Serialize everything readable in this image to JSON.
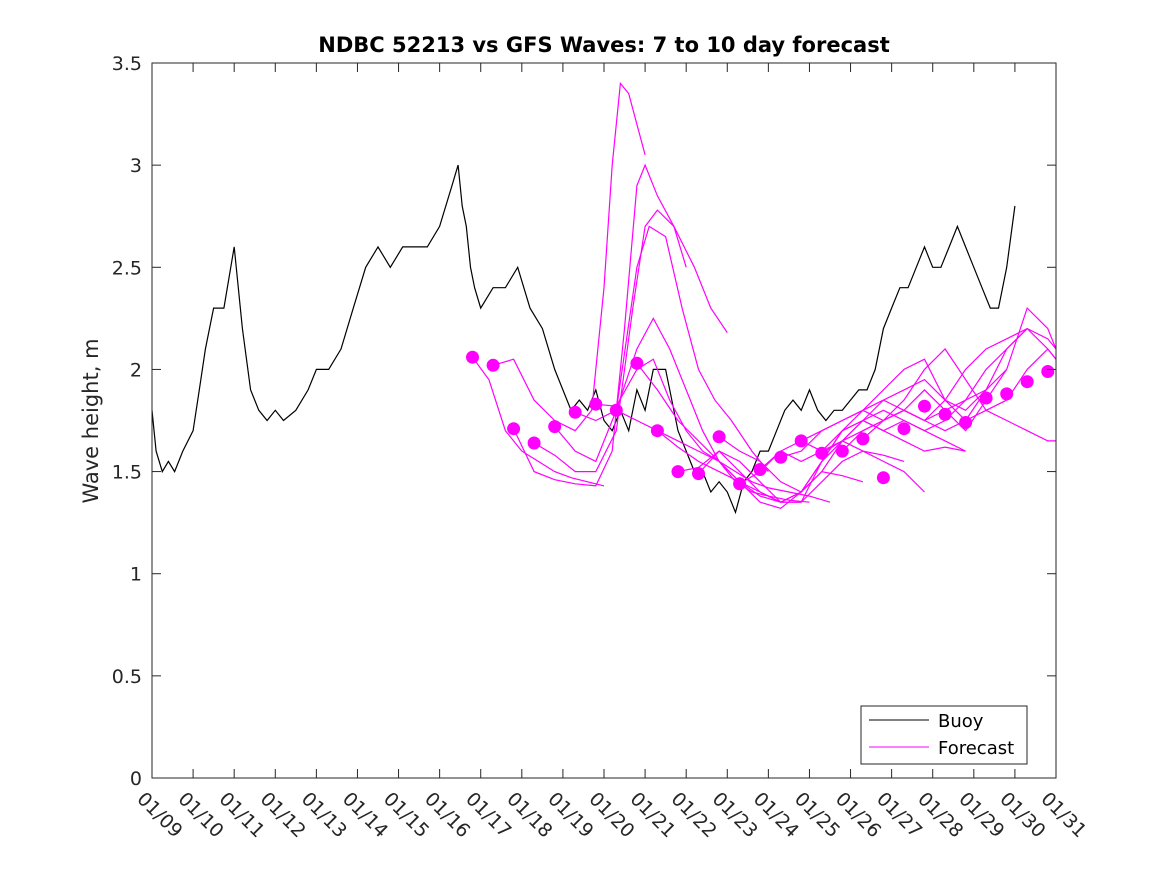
{
  "chart_data": {
    "type": "line",
    "title": "NDBC 52213 vs GFS Waves: 7 to 10 day forecast",
    "xlabel": "",
    "ylabel": "Wave height, m",
    "ylim": [
      0,
      3.5
    ],
    "yticks": [
      0,
      0.5,
      1,
      1.5,
      2,
      2.5,
      3,
      3.5
    ],
    "ytick_labels": [
      "0",
      "0.5",
      "1",
      "1.5",
      "2",
      "2.5",
      "3",
      "3.5"
    ],
    "xlim": [
      0,
      22
    ],
    "xtick_labels": [
      "01/09",
      "01/10",
      "01/11",
      "01/12",
      "01/13",
      "01/14",
      "01/15",
      "01/16",
      "01/17",
      "01/18",
      "01/19",
      "01/20",
      "01/21",
      "01/22",
      "01/23",
      "01/24",
      "01/25",
      "01/26",
      "01/27",
      "01/28",
      "01/29",
      "01/30",
      "01/31"
    ],
    "grid": false,
    "legend": {
      "position": "bottom-right",
      "entries": [
        "Buoy",
        "Forecast"
      ]
    },
    "colors": {
      "buoy": "#000000",
      "forecast": "#ff00ff"
    },
    "series": [
      {
        "name": "Buoy",
        "x": [
          0,
          0.1,
          0.25,
          0.4,
          0.55,
          0.75,
          1.0,
          1.15,
          1.3,
          1.5,
          1.75,
          2.0,
          2.2,
          2.4,
          2.6,
          2.8,
          3.0,
          3.2,
          3.5,
          3.8,
          4.0,
          4.3,
          4.6,
          4.9,
          5.2,
          5.5,
          5.8,
          6.1,
          6.4,
          6.7,
          7.0,
          7.3,
          7.45,
          7.55,
          7.65,
          7.75,
          7.85,
          8.0,
          8.3,
          8.6,
          8.9,
          9.2,
          9.5,
          9.8,
          10.0,
          10.2,
          10.4,
          10.6,
          10.8,
          11.0,
          11.2,
          11.4,
          11.6,
          11.8,
          12.0,
          12.2,
          12.5,
          12.8,
          13.0,
          13.2,
          13.4,
          13.6,
          13.8,
          14.0,
          14.2,
          14.4,
          14.6,
          14.8,
          15.0,
          15.2,
          15.4,
          15.6,
          15.8,
          16.0,
          16.2,
          16.4,
          16.6,
          16.8,
          17.0,
          17.2,
          17.4,
          17.6,
          17.8,
          18.0,
          18.2,
          18.4,
          18.6,
          18.8,
          19.0,
          19.2,
          19.4,
          19.6,
          19.8,
          20.0,
          20.2,
          20.4,
          20.6,
          20.8,
          21.0
        ],
        "values": [
          1.8,
          1.6,
          1.5,
          1.55,
          1.5,
          1.6,
          1.7,
          1.9,
          2.1,
          2.3,
          2.3,
          2.6,
          2.2,
          1.9,
          1.8,
          1.75,
          1.8,
          1.75,
          1.8,
          1.9,
          2.0,
          2.0,
          2.1,
          2.3,
          2.5,
          2.6,
          2.5,
          2.6,
          2.6,
          2.6,
          2.7,
          2.9,
          3.0,
          2.8,
          2.7,
          2.5,
          2.4,
          2.3,
          2.4,
          2.4,
          2.5,
          2.3,
          2.2,
          2.0,
          1.9,
          1.8,
          1.85,
          1.8,
          1.9,
          1.75,
          1.7,
          1.8,
          1.7,
          1.9,
          1.8,
          2.0,
          2.0,
          1.7,
          1.6,
          1.5,
          1.5,
          1.4,
          1.45,
          1.4,
          1.3,
          1.45,
          1.5,
          1.6,
          1.6,
          1.7,
          1.8,
          1.85,
          1.8,
          1.9,
          1.8,
          1.75,
          1.8,
          1.8,
          1.85,
          1.9,
          1.9,
          2.0,
          2.2,
          2.3,
          2.4,
          2.4,
          2.5,
          2.6,
          2.5,
          2.5,
          2.6,
          2.7,
          2.6,
          2.5,
          2.4,
          2.3,
          2.3,
          2.5,
          2.8
        ]
      },
      {
        "name": "Forecast",
        "runs": [
          {
            "x": [
              7.8,
              8.2,
              8.6,
              9.0,
              9.4,
              9.8,
              10.2,
              10.6,
              11.0
            ],
            "values": [
              2.06,
              1.95,
              1.7,
              1.6,
              1.55,
              1.5,
              1.47,
              1.45,
              1.43
            ]
          },
          {
            "x": [
              8.3,
              8.8,
              9.3,
              9.8,
              10.3,
              10.7,
              11.0,
              11.2,
              11.4,
              11.6,
              11.8,
              12.0
            ],
            "values": [
              2.02,
              2.05,
              1.85,
              1.75,
              1.7,
              1.8,
              2.4,
              3.0,
              3.4,
              3.35,
              3.2,
              3.05
            ]
          },
          {
            "x": [
              8.8,
              9.3,
              9.8,
              10.3,
              10.8,
              11.2,
              11.5,
              11.8,
              12.0,
              12.3,
              12.7,
              13.0
            ],
            "values": [
              1.71,
              1.5,
              1.46,
              1.44,
              1.43,
              1.6,
              2.2,
              2.9,
              3.0,
              2.85,
              2.7,
              2.5
            ]
          },
          {
            "x": [
              9.3,
              9.8,
              10.3,
              10.8,
              11.3,
              11.7,
              12.0,
              12.3,
              12.7,
              13.2,
              13.6,
              14.0
            ],
            "values": [
              1.64,
              1.58,
              1.5,
              1.5,
              1.7,
              2.3,
              2.7,
              2.78,
              2.7,
              2.5,
              2.3,
              2.18
            ]
          },
          {
            "x": [
              9.8,
              10.3,
              10.8,
              11.3,
              11.8,
              12.1,
              12.5,
              12.9,
              13.3,
              13.7,
              14.1,
              14.6,
              15.0
            ],
            "values": [
              1.72,
              1.6,
              1.55,
              1.8,
              2.5,
              2.7,
              2.65,
              2.3,
              2.0,
              1.85,
              1.75,
              1.6,
              1.5
            ]
          },
          {
            "x": [
              10.3,
              10.8,
              11.3,
              11.8,
              12.2,
              12.6,
              13.0,
              13.4,
              13.8,
              14.2,
              14.6,
              15.0,
              15.5,
              16.0
            ],
            "values": [
              1.79,
              1.75,
              1.8,
              2.1,
              2.25,
              2.1,
              1.9,
              1.7,
              1.55,
              1.45,
              1.4,
              1.38,
              1.36,
              1.35
            ]
          },
          {
            "x": [
              10.8,
              11.3,
              11.8,
              12.2,
              12.6,
              13.0,
              13.4,
              13.8,
              14.2,
              14.6,
              15.0,
              15.5,
              16.0,
              16.5
            ],
            "values": [
              1.83,
              1.82,
              2.0,
              2.05,
              1.85,
              1.7,
              1.6,
              1.55,
              1.5,
              1.45,
              1.42,
              1.4,
              1.38,
              1.35
            ]
          },
          {
            "x": [
              11.3,
              11.8,
              12.3,
              12.8,
              13.3,
              13.8,
              14.3,
              14.8,
              15.3,
              15.8,
              16.3,
              16.8,
              17.3
            ],
            "values": [
              1.8,
              1.75,
              1.7,
              1.65,
              1.6,
              1.55,
              1.45,
              1.38,
              1.35,
              1.4,
              1.5,
              1.48,
              1.45
            ]
          },
          {
            "x": [
              11.8,
              12.3,
              12.8,
              13.3,
              13.8,
              14.3,
              14.8,
              15.3,
              15.8,
              16.3,
              16.8,
              17.3,
              17.8,
              18.3,
              18.8
            ],
            "values": [
              2.03,
              1.9,
              1.75,
              1.65,
              1.55,
              1.45,
              1.35,
              1.32,
              1.4,
              1.55,
              1.65,
              1.6,
              1.55,
              1.5,
              1.4
            ]
          },
          {
            "x": [
              12.3,
              12.8,
              13.3,
              13.8,
              14.3,
              14.8,
              15.3,
              15.8,
              16.3,
              16.8,
              17.3,
              17.8,
              18.3
            ],
            "values": [
              1.7,
              1.62,
              1.55,
              1.5,
              1.45,
              1.4,
              1.35,
              1.35,
              1.45,
              1.55,
              1.6,
              1.58,
              1.55
            ]
          },
          {
            "x": [
              12.8,
              13.3,
              13.8,
              14.3,
              14.8,
              15.3,
              15.8,
              16.3,
              16.8,
              17.3,
              17.8,
              18.3,
              18.8,
              19.3,
              19.8
            ],
            "values": [
              1.5,
              1.52,
              1.6,
              1.5,
              1.4,
              1.35,
              1.4,
              1.55,
              1.7,
              1.75,
              1.7,
              1.65,
              1.6,
              1.62,
              1.6
            ]
          },
          {
            "x": [
              13.3,
              13.8,
              14.3,
              14.8,
              15.3,
              15.8,
              16.3,
              16.8,
              17.3,
              17.8,
              18.3,
              18.8,
              19.3,
              19.8
            ],
            "values": [
              1.49,
              1.6,
              1.55,
              1.45,
              1.35,
              1.35,
              1.55,
              1.7,
              1.75,
              1.7,
              1.75,
              1.7,
              1.65,
              1.6
            ]
          },
          {
            "x": [
              13.8,
              14.3,
              14.8,
              15.3,
              15.8,
              16.3,
              16.8,
              17.3,
              17.8,
              18.3,
              18.8,
              19.3,
              19.8,
              20.3
            ],
            "values": [
              1.67,
              1.6,
              1.55,
              1.45,
              1.4,
              1.5,
              1.65,
              1.75,
              1.8,
              1.75,
              1.7,
              1.75,
              1.85,
              1.9
            ]
          },
          {
            "x": [
              14.3,
              14.8,
              15.3,
              15.8,
              16.3,
              16.8,
              17.3,
              17.8,
              18.3,
              18.8,
              19.3,
              19.8,
              20.3,
              20.8
            ],
            "values": [
              1.44,
              1.5,
              1.6,
              1.55,
              1.6,
              1.65,
              1.75,
              1.85,
              1.9,
              1.95,
              1.85,
              1.8,
              1.9,
              2.0
            ]
          },
          {
            "x": [
              14.8,
              15.3,
              15.8,
              16.3,
              16.8,
              17.3,
              17.8,
              18.3,
              18.8,
              19.3,
              19.8,
              20.3,
              20.8,
              21.3
            ],
            "values": [
              1.51,
              1.6,
              1.65,
              1.6,
              1.7,
              1.8,
              1.9,
              2.0,
              2.05,
              1.85,
              1.75,
              1.9,
              2.1,
              2.2
            ]
          },
          {
            "x": [
              15.3,
              15.8,
              16.3,
              16.8,
              17.3,
              17.8,
              18.3,
              18.8,
              19.3,
              19.8,
              20.3,
              20.8,
              21.3,
              21.8,
              22.0
            ],
            "values": [
              1.57,
              1.6,
              1.7,
              1.75,
              1.8,
              1.75,
              1.85,
              2.0,
              2.1,
              1.95,
              1.8,
              1.85,
              2.0,
              2.1,
              2.05
            ]
          },
          {
            "x": [
              15.8,
              16.3,
              16.8,
              17.3,
              17.8,
              18.3,
              18.8,
              19.3,
              19.8,
              20.3,
              20.8,
              21.3,
              21.8,
              22.0
            ],
            "values": [
              1.65,
              1.7,
              1.75,
              1.8,
              1.85,
              1.8,
              1.75,
              1.85,
              2.0,
              2.1,
              2.15,
              2.2,
              2.1,
              2.05
            ]
          },
          {
            "x": [
              16.3,
              16.8,
              17.3,
              17.8,
              18.3,
              18.8,
              19.3,
              19.8,
              20.3,
              20.8,
              21.3,
              21.8,
              22.0
            ],
            "values": [
              1.59,
              1.65,
              1.7,
              1.75,
              1.8,
              1.75,
              1.7,
              1.75,
              1.8,
              1.75,
              1.7,
              1.65,
              1.65
            ]
          },
          {
            "x": [
              16.8,
              17.3,
              17.8,
              18.3,
              18.8,
              19.3,
              19.8,
              20.3,
              20.8,
              21.3,
              21.8,
              22.0
            ],
            "values": [
              1.6,
              1.7,
              1.75,
              1.8,
              1.9,
              1.8,
              1.7,
              1.85,
              2.0,
              2.3,
              2.2,
              2.1
            ]
          },
          {
            "x": [
              17.3,
              17.8,
              18.3,
              18.8,
              19.3,
              19.8,
              20.3,
              20.8,
              21.3,
              21.8,
              22.0
            ],
            "values": [
              1.66,
              1.75,
              1.8,
              1.75,
              1.8,
              1.85,
              2.0,
              2.1,
              2.2,
              2.15,
              2.1
            ]
          }
        ],
        "markers": {
          "x": [
            7.8,
            8.3,
            8.8,
            9.3,
            9.8,
            10.3,
            10.8,
            11.3,
            11.8,
            12.3,
            12.8,
            13.3,
            13.8,
            14.3,
            14.8,
            15.3,
            15.8,
            16.3,
            16.8,
            17.3,
            17.8,
            18.3,
            18.8,
            19.3,
            19.8,
            20.3,
            20.8,
            21.3,
            21.8
          ],
          "values": [
            2.06,
            2.02,
            1.71,
            1.64,
            1.72,
            1.79,
            1.83,
            1.8,
            2.03,
            1.7,
            1.5,
            1.49,
            1.67,
            1.44,
            1.51,
            1.57,
            1.65,
            1.59,
            1.6,
            1.66,
            1.47,
            1.71,
            1.82,
            1.78,
            1.74,
            1.86,
            1.88,
            1.94,
            1.99
          ]
        }
      }
    ]
  }
}
